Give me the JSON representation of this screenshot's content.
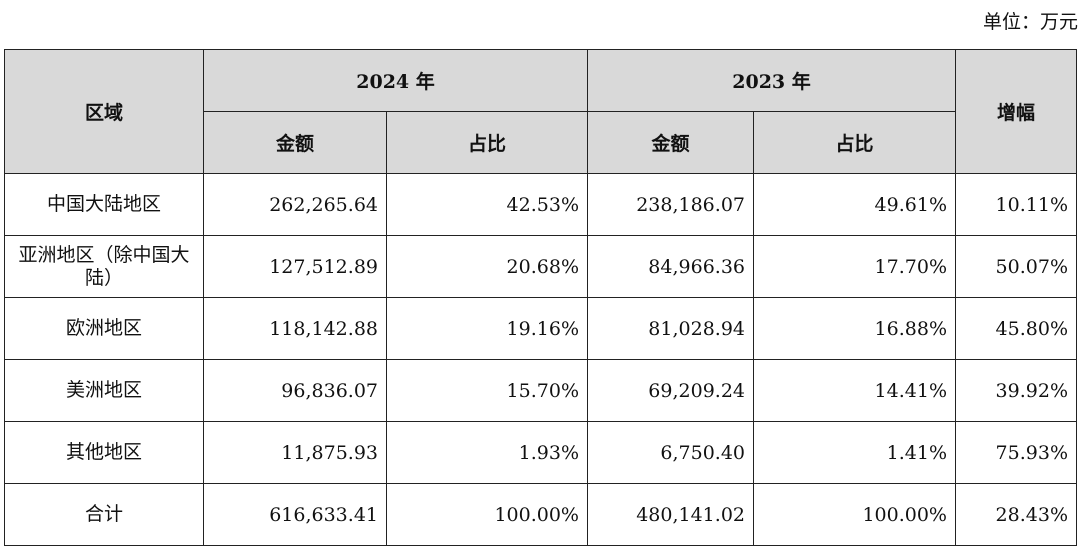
{
  "unit_label": "单位：万元",
  "headers": {
    "region": "区域",
    "year_a": "2024 年",
    "year_b": "2023 年",
    "growth": "增幅",
    "amount_a": "金额",
    "share_a": "占比",
    "amount_b": "金额",
    "share_b": "占比"
  },
  "rows": [
    {
      "region": "中国大陆地区",
      "amount_2024": "262,265.64",
      "share_2024": "42.53%",
      "amount_2023": "238,186.07",
      "share_2023": "49.61%",
      "growth": "10.11%"
    },
    {
      "region": "亚洲地区（除中国大陆）",
      "amount_2024": "127,512.89",
      "share_2024": "20.68%",
      "amount_2023": "84,966.36",
      "share_2023": "17.70%",
      "growth": "50.07%"
    },
    {
      "region": "欧洲地区",
      "amount_2024": "118,142.88",
      "share_2024": "19.16%",
      "amount_2023": "81,028.94",
      "share_2023": "16.88%",
      "growth": "45.80%"
    },
    {
      "region": "美洲地区",
      "amount_2024": "96,836.07",
      "share_2024": "15.70%",
      "amount_2023": "69,209.24",
      "share_2023": "14.41%",
      "growth": "39.92%"
    },
    {
      "region": "其他地区",
      "amount_2024": "11,875.93",
      "share_2024": "1.93%",
      "amount_2023": "6,750.40",
      "share_2023": "1.41%",
      "growth": "75.93%"
    },
    {
      "region": "合计",
      "amount_2024": "616,633.41",
      "share_2024": "100.00%",
      "amount_2023": "480,141.02",
      "share_2023": "100.00%",
      "growth": "28.43%"
    }
  ]
}
